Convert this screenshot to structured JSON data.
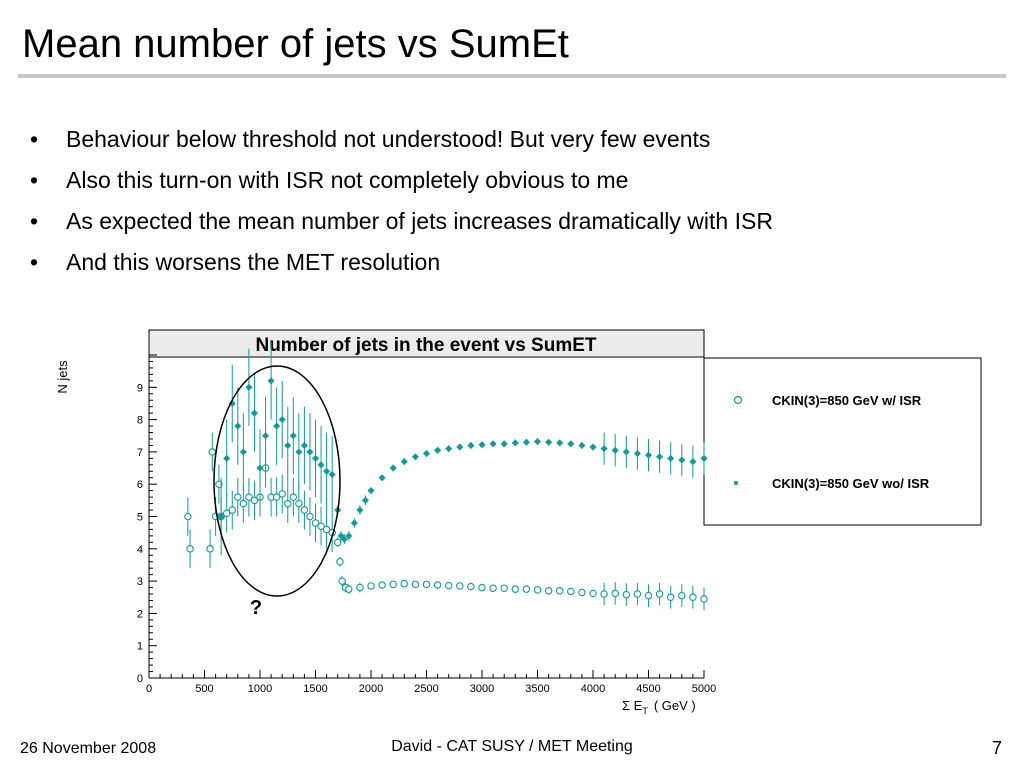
{
  "slide": {
    "title": "Mean number of jets vs SumEt",
    "bullets": [
      "Behaviour below threshold not understood! But very few events",
      "Also this turn-on with ISR not completely obvious to me",
      "As expected the mean number of jets increases dramatically with ISR",
      "And this worsens the MET resolution"
    ],
    "footer": {
      "date": "26 November 2008",
      "center": "David - CAT SUSY / MET Meeting",
      "page": "7"
    }
  },
  "chart_data": {
    "type": "scatter",
    "title": "Number of jets in the event vs SumET",
    "xlabel": "Σ E_T ( GeV )",
    "xlabel_main": "Σ E",
    "xlabel_sub": "T",
    "xlabel_unit": "( GeV )",
    "ylabel": "N jets",
    "xlim": [
      0,
      5000
    ],
    "ylim": [
      0,
      10
    ],
    "xticks": [
      "0",
      "500",
      "1000",
      "1500",
      "2000",
      "2500",
      "3000",
      "3500",
      "4000",
      "4500",
      "5000"
    ],
    "yticks": [
      "0",
      "1",
      "2",
      "3",
      "4",
      "5",
      "6",
      "7",
      "8",
      "9"
    ],
    "annotation": "?",
    "marker_color": "#109a9a",
    "legend": [
      {
        "label": "CKIN(3)=850 GeV w/ ISR",
        "marker": "open-circle"
      },
      {
        "label": "CKIN(3)=850 GeV wo/ ISR",
        "marker": "filled-star"
      }
    ],
    "series": [
      {
        "name": "CKIN(3)=850 GeV w/ ISR",
        "marker": "open-circle",
        "points": [
          [
            350,
            5.0
          ],
          [
            370,
            4.0
          ],
          [
            550,
            4.0
          ],
          [
            570,
            7.0
          ],
          [
            600,
            5.0
          ],
          [
            630,
            6.0
          ],
          [
            650,
            5.0
          ],
          [
            700,
            5.1
          ],
          [
            750,
            5.2
          ],
          [
            800,
            5.6
          ],
          [
            850,
            5.4
          ],
          [
            900,
            5.6
          ],
          [
            950,
            5.5
          ],
          [
            1000,
            5.6
          ],
          [
            1050,
            6.5
          ],
          [
            1100,
            5.6
          ],
          [
            1150,
            5.6
          ],
          [
            1200,
            5.7
          ],
          [
            1250,
            5.4
          ],
          [
            1300,
            5.6
          ],
          [
            1350,
            5.4
          ],
          [
            1400,
            5.2
          ],
          [
            1450,
            5.0
          ],
          [
            1500,
            4.8
          ],
          [
            1550,
            4.7
          ],
          [
            1600,
            4.6
          ],
          [
            1650,
            4.5
          ],
          [
            1700,
            4.2
          ],
          [
            1720,
            3.6
          ],
          [
            1740,
            3.0
          ],
          [
            1770,
            2.8
          ],
          [
            1800,
            2.75
          ],
          [
            1900,
            2.8
          ],
          [
            2000,
            2.85
          ],
          [
            2100,
            2.88
          ],
          [
            2200,
            2.9
          ],
          [
            2300,
            2.92
          ],
          [
            2400,
            2.9
          ],
          [
            2500,
            2.9
          ],
          [
            2600,
            2.88
          ],
          [
            2700,
            2.86
          ],
          [
            2800,
            2.85
          ],
          [
            2900,
            2.83
          ],
          [
            3000,
            2.8
          ],
          [
            3100,
            2.78
          ],
          [
            3200,
            2.78
          ],
          [
            3300,
            2.75
          ],
          [
            3400,
            2.75
          ],
          [
            3500,
            2.73
          ],
          [
            3600,
            2.7
          ],
          [
            3700,
            2.7
          ],
          [
            3800,
            2.68
          ],
          [
            3900,
            2.65
          ],
          [
            4000,
            2.62
          ],
          [
            4100,
            2.6
          ],
          [
            4200,
            2.62
          ],
          [
            4300,
            2.58
          ],
          [
            4400,
            2.6
          ],
          [
            4500,
            2.55
          ],
          [
            4600,
            2.6
          ],
          [
            4700,
            2.5
          ],
          [
            4800,
            2.55
          ],
          [
            4900,
            2.5
          ],
          [
            5000,
            2.45
          ]
        ]
      },
      {
        "name": "CKIN(3)=850 GeV wo/ ISR",
        "marker": "filled-star",
        "points": [
          [
            650,
            5.0
          ],
          [
            700,
            6.8
          ],
          [
            750,
            8.5
          ],
          [
            800,
            7.8
          ],
          [
            850,
            7.0
          ],
          [
            900,
            9.0
          ],
          [
            950,
            8.2
          ],
          [
            1000,
            6.5
          ],
          [
            1050,
            7.5
          ],
          [
            1100,
            9.2
          ],
          [
            1150,
            7.8
          ],
          [
            1200,
            8.0
          ],
          [
            1250,
            7.2
          ],
          [
            1300,
            7.5
          ],
          [
            1350,
            7.0
          ],
          [
            1400,
            7.2
          ],
          [
            1450,
            7.0
          ],
          [
            1500,
            6.8
          ],
          [
            1550,
            6.6
          ],
          [
            1600,
            6.4
          ],
          [
            1650,
            6.3
          ],
          [
            1700,
            5.2
          ],
          [
            1730,
            4.4
          ],
          [
            1760,
            4.3
          ],
          [
            1800,
            4.4
          ],
          [
            1850,
            4.8
          ],
          [
            1900,
            5.2
          ],
          [
            1950,
            5.5
          ],
          [
            2000,
            5.8
          ],
          [
            2100,
            6.2
          ],
          [
            2200,
            6.5
          ],
          [
            2300,
            6.7
          ],
          [
            2400,
            6.85
          ],
          [
            2500,
            6.95
          ],
          [
            2600,
            7.05
          ],
          [
            2700,
            7.1
          ],
          [
            2800,
            7.15
          ],
          [
            2900,
            7.2
          ],
          [
            3000,
            7.22
          ],
          [
            3100,
            7.25
          ],
          [
            3200,
            7.25
          ],
          [
            3300,
            7.28
          ],
          [
            3400,
            7.3
          ],
          [
            3500,
            7.32
          ],
          [
            3600,
            7.3
          ],
          [
            3700,
            7.28
          ],
          [
            3800,
            7.25
          ],
          [
            3900,
            7.2
          ],
          [
            4000,
            7.15
          ],
          [
            4100,
            7.1
          ],
          [
            4200,
            7.05
          ],
          [
            4300,
            7.0
          ],
          [
            4400,
            6.95
          ],
          [
            4500,
            6.9
          ],
          [
            4600,
            6.85
          ],
          [
            4700,
            6.8
          ],
          [
            4800,
            6.75
          ],
          [
            4900,
            6.7
          ],
          [
            5000,
            6.8
          ]
        ]
      }
    ]
  }
}
